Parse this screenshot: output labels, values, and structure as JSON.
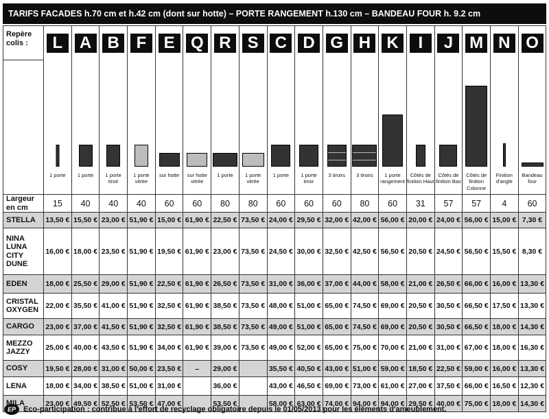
{
  "header": {
    "title": "TARIFS FACADES h.70 cm et h.42 cm (dont sur hotte) – PORTE RANGEMENT h.130 cm – BANDEAU FOUR h. 9.2 cm"
  },
  "labels": {
    "repere": "Repère colis :",
    "largeur": "Largeur en cm"
  },
  "columns": [
    {
      "letter": "L",
      "desc": "1 porte",
      "width": "15",
      "shape": {
        "w": 5,
        "h": 32,
        "style": "dark"
      }
    },
    {
      "letter": "A",
      "desc": "1 porte",
      "width": "40",
      "shape": {
        "w": 20,
        "h": 32,
        "style": "dark"
      }
    },
    {
      "letter": "B",
      "desc": "1 porte tiroir",
      "width": "40",
      "shape": {
        "w": 20,
        "h": 32,
        "style": "dark"
      }
    },
    {
      "letter": "F",
      "desc": "1 porte vitrée",
      "width": "40",
      "shape": {
        "w": 20,
        "h": 32,
        "style": "light"
      }
    },
    {
      "letter": "E",
      "desc": "sur hotte",
      "width": "60",
      "shape": {
        "w": 30,
        "h": 20,
        "style": "dark"
      }
    },
    {
      "letter": "Q",
      "desc": "sur hotte vitrée",
      "width": "60",
      "shape": {
        "w": 30,
        "h": 20,
        "style": "light"
      }
    },
    {
      "letter": "R",
      "desc": "1 porte",
      "width": "80",
      "shape": {
        "w": 36,
        "h": 20,
        "style": "dark"
      }
    },
    {
      "letter": "S",
      "desc": "1 porte vitrée",
      "width": "80",
      "shape": {
        "w": 32,
        "h": 20,
        "style": "light"
      }
    },
    {
      "letter": "C",
      "desc": "1 porte",
      "width": "60",
      "shape": {
        "w": 28,
        "h": 32,
        "style": "dark"
      }
    },
    {
      "letter": "D",
      "desc": "1 porte tiroir",
      "width": "60",
      "shape": {
        "w": 28,
        "h": 32,
        "style": "dark"
      }
    },
    {
      "letter": "G",
      "desc": "3 tiroirs",
      "width": "60",
      "shape": {
        "w": 28,
        "h": 32,
        "style": "lined"
      }
    },
    {
      "letter": "H",
      "desc": "3 tiroirs",
      "width": "80",
      "shape": {
        "w": 36,
        "h": 32,
        "style": "lined"
      }
    },
    {
      "letter": "K",
      "desc": "1 porte rangement",
      "width": "60",
      "shape": {
        "w": 30,
        "h": 76,
        "style": "dark"
      }
    },
    {
      "letter": "I",
      "desc": "Côtés de finition Haut",
      "width": "31",
      "shape": {
        "w": 14,
        "h": 32,
        "style": "dark"
      }
    },
    {
      "letter": "J",
      "desc": "Côtés de finition Bas",
      "width": "57",
      "shape": {
        "w": 26,
        "h": 32,
        "style": "dark"
      }
    },
    {
      "letter": "M",
      "desc": "Côtés de finition Colonne",
      "width": "57",
      "shape": {
        "w": 32,
        "h": 118,
        "style": "dark"
      }
    },
    {
      "letter": "N",
      "desc": "Finition d'angle",
      "width": "4",
      "shape": {
        "w": 4,
        "h": 34,
        "style": "dark"
      }
    },
    {
      "letter": "O",
      "desc": "Bandeau four",
      "width": "60",
      "shape": {
        "w": 32,
        "h": 6,
        "style": "dark"
      }
    }
  ],
  "rows": [
    {
      "name": "STELLA",
      "shade": true,
      "height": 23,
      "prices": [
        "13,50 €",
        "15,50 €",
        "23,00 €",
        "51,90 €",
        "15,00 €",
        "61,90 €",
        "22,50 €",
        "73,50 €",
        "24,00 €",
        "29,50 €",
        "32,00 €",
        "42,00 €",
        "56,00 €",
        "20,00 €",
        "24,00 €",
        "56,00 €",
        "15,00 €",
        "7,30 €"
      ]
    },
    {
      "name": "NINA\nLUNA\nCITY\nDUNE",
      "shade": false,
      "height": 68,
      "prices": [
        "16,00 €",
        "18,00 €",
        "23,50 €",
        "51,90 €",
        "19,50 €",
        "61,90 €",
        "23,00 €",
        "73,50 €",
        "24,50 €",
        "30,00 €",
        "32,50 €",
        "42,50 €",
        "56,50 €",
        "20,50 €",
        "24,50 €",
        "56,50 €",
        "15,50 €",
        "8,30 €"
      ]
    },
    {
      "name": "EDEN",
      "shade": true,
      "height": 27,
      "prices": [
        "18,00 €",
        "25,50 €",
        "29,00 €",
        "51,90 €",
        "22,50 €",
        "61,90 €",
        "26,50 €",
        "73,50 €",
        "31,00 €",
        "36,00 €",
        "37,00 €",
        "44,00 €",
        "58,00 €",
        "21,00 €",
        "26,50 €",
        "66,00 €",
        "16,00 €",
        "13,30 €"
      ]
    },
    {
      "name": "CRISTAL\nOXYGEN",
      "shade": false,
      "height": 37,
      "prices": [
        "22,00 €",
        "35,50 €",
        "41,00 €",
        "51,90 €",
        "32,50 €",
        "61,90 €",
        "38,50 €",
        "73,50 €",
        "48,00 €",
        "51,00 €",
        "65,00 €",
        "74,50 €",
        "69,00 €",
        "20,50 €",
        "30,50 €",
        "66,50 €",
        "17,50 €",
        "13,30 €"
      ]
    },
    {
      "name": "CARGO",
      "shade": true,
      "height": 24,
      "prices": [
        "23,00 €",
        "37,00 €",
        "41,50 €",
        "51,90 €",
        "32,50 €",
        "61,90 €",
        "38,50 €",
        "73,50 €",
        "49,00 €",
        "51,00 €",
        "65,00 €",
        "74,50 €",
        "69,00 €",
        "20,50 €",
        "30,50 €",
        "66,50 €",
        "18,00 €",
        "14,30 €"
      ]
    },
    {
      "name": "MEZZO\nJAZZY",
      "shade": false,
      "height": 37,
      "prices": [
        "25,00 €",
        "40,00 €",
        "43,50 €",
        "51,90 €",
        "34,00 €",
        "61,90 €",
        "39,00 €",
        "73,50 €",
        "49,00 €",
        "52,00 €",
        "65,00 €",
        "75,00 €",
        "70,00 €",
        "21,00 €",
        "31,00 €",
        "67,00 €",
        "18,00 €",
        "16,30 €"
      ]
    },
    {
      "name": "COSY",
      "shade": true,
      "height": 24,
      "prices": [
        "19,50 €",
        "28,00 €",
        "31,00 €",
        "50,00 €",
        "23,50 €",
        "–",
        "29,00 €",
        "",
        "35,50 €",
        "40,50 €",
        "43,00 €",
        "51,00 €",
        "59,00 €",
        "18,50 €",
        "22,50 €",
        "59,00 €",
        "16,00 €",
        "13,30 €"
      ]
    },
    {
      "name": "LENA",
      "shade": false,
      "height": 27,
      "prices": [
        "18,00 €",
        "34,00 €",
        "38,50 €",
        "51,00 €",
        "31,00 €",
        "",
        "36,00 €",
        "",
        "43,00 €",
        "46,50 €",
        "69,00 €",
        "73,00 €",
        "61,00 €",
        "27,00 €",
        "37,50 €",
        "66,00 €",
        "16,50 €",
        "12,30 €"
      ]
    },
    {
      "name": "MILA",
      "shade": true,
      "height": 24,
      "prices": [
        "23,00 €",
        "49,50 €",
        "52,50 €",
        "53,50 €",
        "47,00 €",
        "",
        "53,50 €",
        "",
        "58,00 €",
        "63,00 €",
        "74,00 €",
        "94,00 €",
        "94,00 €",
        "29,50 €",
        "40,00 €",
        "75,00 €",
        "18,00 €",
        "14,30 €"
      ]
    }
  ],
  "footer": {
    "logo": "EP",
    "text": "Eco-participation : contribue à l'effort de recyclage obligatoire depuis le 01/05/2013 pour les éléments d'ameublement."
  }
}
